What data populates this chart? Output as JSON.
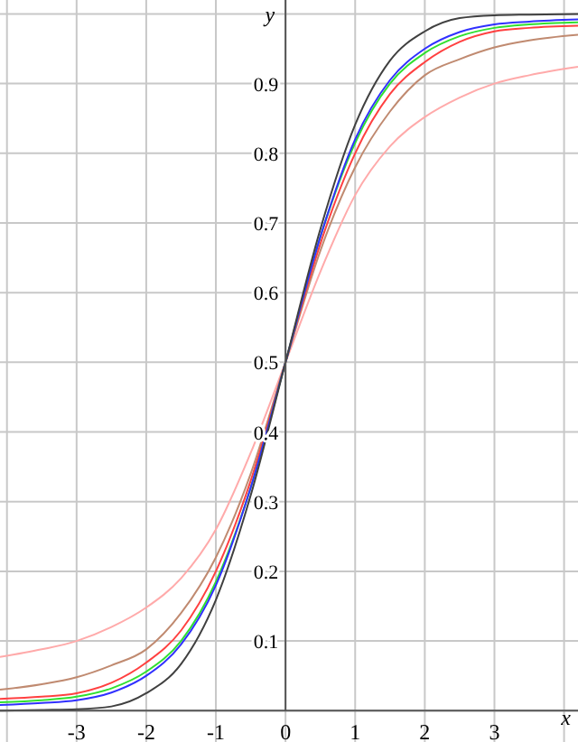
{
  "chart_data": {
    "type": "line",
    "xlabel": "x",
    "ylabel": "y",
    "x": [
      -4.1,
      -3.5,
      -3,
      -2.5,
      -2,
      -1.5,
      -1,
      -0.5,
      0,
      0.5,
      1,
      1.5,
      2,
      2.5,
      3,
      3.5,
      4.2
    ],
    "series": [
      {
        "color": "#ffaaaa",
        "values": [
          0.077,
          0.088,
          0.1,
          0.12,
          0.148,
          0.19,
          0.26,
          0.37,
          0.5,
          0.63,
          0.74,
          0.81,
          0.852,
          0.88,
          0.9,
          0.912,
          0.924
        ]
      },
      {
        "color": "#c08a70",
        "values": [
          0.03,
          0.038,
          0.048,
          0.065,
          0.088,
          0.14,
          0.22,
          0.34,
          0.5,
          0.66,
          0.78,
          0.86,
          0.912,
          0.935,
          0.952,
          0.962,
          0.97
        ]
      },
      {
        "color": "#ff4040",
        "values": [
          0.017,
          0.02,
          0.025,
          0.04,
          0.069,
          0.115,
          0.2,
          0.33,
          0.5,
          0.67,
          0.8,
          0.885,
          0.931,
          0.96,
          0.975,
          0.98,
          0.983
        ]
      },
      {
        "color": "#30e030",
        "values": [
          0.012,
          0.015,
          0.02,
          0.032,
          0.056,
          0.1,
          0.185,
          0.32,
          0.5,
          0.68,
          0.815,
          0.9,
          0.944,
          0.968,
          0.98,
          0.985,
          0.988
        ]
      },
      {
        "color": "#3030ff",
        "values": [
          0.008,
          0.011,
          0.015,
          0.026,
          0.05,
          0.095,
          0.18,
          0.32,
          0.5,
          0.68,
          0.82,
          0.905,
          0.95,
          0.974,
          0.985,
          0.989,
          0.992
        ]
      },
      {
        "color": "#404040",
        "values": [
          0,
          0.001,
          0.002,
          0.006,
          0.025,
          0.067,
          0.159,
          0.309,
          0.5,
          0.691,
          0.841,
          0.933,
          0.975,
          0.994,
          0.998,
          0.999,
          1
        ]
      }
    ],
    "xlim": [
      -4.1,
      4.2
    ],
    "ylim": [
      -0.045,
      1.02
    ],
    "xticks": [
      {
        "value": -4,
        "label": null
      },
      {
        "value": -3,
        "label": "-3"
      },
      {
        "value": -2,
        "label": "-2"
      },
      {
        "value": -1,
        "label": "-1"
      },
      0,
      1,
      2,
      3,
      {
        "value": 4,
        "label": null
      }
    ],
    "yticks": [
      {
        "value": 0,
        "label": null
      },
      0.1,
      0.2,
      0.3,
      0.4,
      0.5,
      0.6,
      0.7,
      0.8,
      0.9,
      {
        "value": 1,
        "label": null
      }
    ],
    "grid": true,
    "marker": "none",
    "line_style": "solid"
  }
}
